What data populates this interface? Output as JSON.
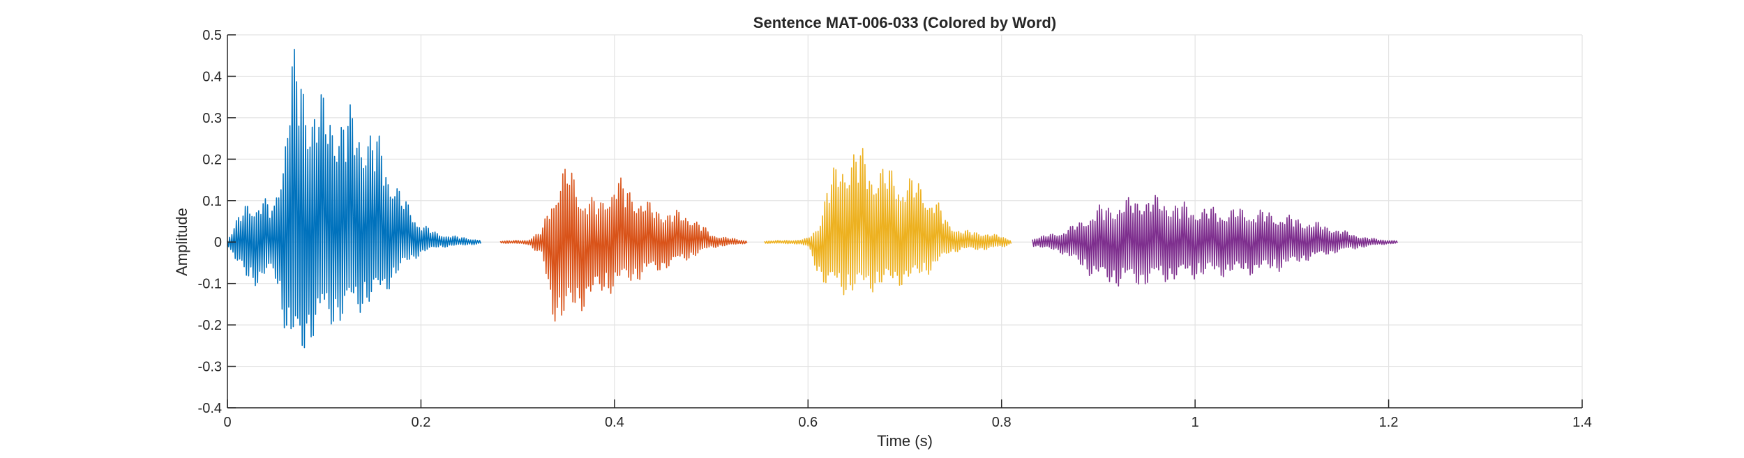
{
  "chart_data": {
    "type": "line",
    "title": "Sentence MAT-006-033 (Colored by Word)",
    "xlabel": "Time (s)",
    "ylabel": "Amplitude",
    "xlim": [
      0,
      1.4
    ],
    "ylim": [
      -0.4,
      0.5
    ],
    "xticks": [
      0,
      0.2,
      0.4,
      0.6,
      0.8,
      1,
      1.2,
      1.4
    ],
    "xtick_labels": [
      "0",
      "0.2",
      "0.4",
      "0.6",
      "0.8",
      "1",
      "1.2",
      "1.4"
    ],
    "yticks": [
      -0.4,
      -0.3,
      -0.2,
      -0.1,
      0,
      0.1,
      0.2,
      0.3,
      0.4,
      0.5
    ],
    "ytick_labels": [
      "-0.4",
      "-0.3",
      "-0.2",
      "-0.1",
      "0",
      "0.1",
      "0.2",
      "0.3",
      "0.4",
      "0.5"
    ],
    "grid": true,
    "series": [
      {
        "color": "#0072BD",
        "x_range": [
          0,
          0.262
        ],
        "envelope": {
          "t": [
            0,
            0.008,
            0.02,
            0.035,
            0.048,
            0.058,
            0.066,
            0.072,
            0.085,
            0.1,
            0.12,
            0.14,
            0.16,
            0.18,
            0.2,
            0.215,
            0.235,
            0.262
          ],
          "peak": [
            0.005,
            0.05,
            0.1,
            0.115,
            0.09,
            0.27,
            0.46,
            0.48,
            0.39,
            0.36,
            0.34,
            0.32,
            0.25,
            0.12,
            0.05,
            0.025,
            0.015,
            0.005
          ],
          "trough": [
            -0.005,
            -0.05,
            -0.1,
            -0.11,
            -0.08,
            -0.2,
            -0.31,
            -0.32,
            -0.25,
            -0.22,
            -0.2,
            -0.17,
            -0.14,
            -0.07,
            -0.03,
            -0.015,
            -0.01,
            -0.005
          ]
        }
      },
      {
        "color": "#D95319",
        "x_range": [
          0.282,
          0.538
        ],
        "envelope": {
          "t": [
            0.282,
            0.31,
            0.325,
            0.335,
            0.345,
            0.352,
            0.365,
            0.385,
            0.4,
            0.42,
            0.44,
            0.46,
            0.48,
            0.5,
            0.52,
            0.538
          ],
          "peak": [
            0.003,
            0.005,
            0.03,
            0.12,
            0.18,
            0.2,
            0.13,
            0.1,
            0.17,
            0.13,
            0.09,
            0.08,
            0.07,
            0.02,
            0.01,
            0.003
          ],
          "trough": [
            -0.003,
            -0.005,
            -0.04,
            -0.18,
            -0.22,
            -0.2,
            -0.17,
            -0.14,
            -0.12,
            -0.1,
            -0.08,
            -0.06,
            -0.04,
            -0.015,
            -0.008,
            -0.003
          ]
        }
      },
      {
        "color": "#EDB120",
        "x_range": [
          0.555,
          0.81
        ],
        "envelope": {
          "t": [
            0.555,
            0.59,
            0.6,
            0.61,
            0.62,
            0.635,
            0.65,
            0.67,
            0.69,
            0.71,
            0.73,
            0.745,
            0.76,
            0.78,
            0.8,
            0.81
          ],
          "peak": [
            0.003,
            0.005,
            0.01,
            0.04,
            0.15,
            0.22,
            0.245,
            0.2,
            0.18,
            0.16,
            0.12,
            0.05,
            0.03,
            0.025,
            0.015,
            0.005
          ],
          "trough": [
            -0.003,
            -0.005,
            -0.015,
            -0.08,
            -0.12,
            -0.13,
            -0.13,
            -0.12,
            -0.11,
            -0.1,
            -0.07,
            -0.03,
            -0.02,
            -0.02,
            -0.015,
            -0.005
          ]
        }
      },
      {
        "color": "#7E2F8E",
        "x_range": [
          0.832,
          1.21
        ],
        "envelope": {
          "t": [
            0.832,
            0.86,
            0.88,
            0.9,
            0.92,
            0.945,
            0.97,
            1.0,
            1.03,
            1.06,
            1.09,
            1.11,
            1.14,
            1.17,
            1.19,
            1.21
          ],
          "peak": [
            0.01,
            0.025,
            0.05,
            0.09,
            0.1,
            0.12,
            0.11,
            0.09,
            0.085,
            0.085,
            0.07,
            0.06,
            0.04,
            0.015,
            0.007,
            0.003
          ],
          "trough": [
            -0.01,
            -0.025,
            -0.06,
            -0.1,
            -0.11,
            -0.11,
            -0.1,
            -0.09,
            -0.085,
            -0.08,
            -0.07,
            -0.05,
            -0.03,
            -0.015,
            -0.007,
            -0.003
          ]
        }
      }
    ]
  }
}
